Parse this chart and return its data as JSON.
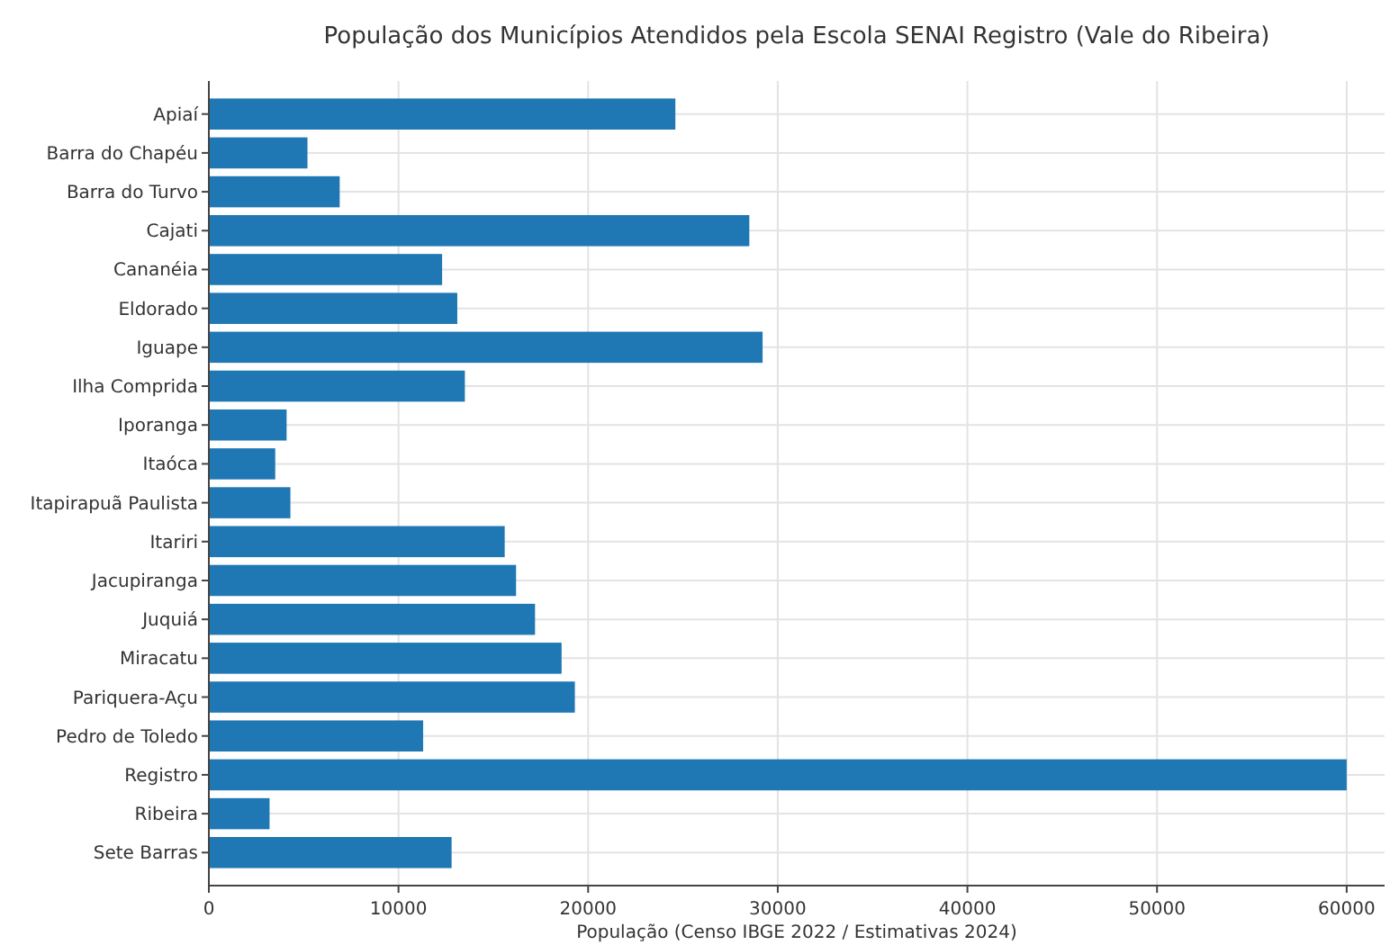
{
  "chart_data": {
    "type": "bar",
    "orientation": "horizontal",
    "title": "População dos Municípios Atendidos pela Escola SENAI Registro (Vale do Ribeira)",
    "xlabel": "População (Censo IBGE 2022 / Estimativas 2024)",
    "categories": [
      "Apiaí",
      "Barra do Chapéu",
      "Barra do Turvo",
      "Cajati",
      "Cananéia",
      "Eldorado",
      "Iguape",
      "Ilha Comprida",
      "Iporanga",
      "Itaóca",
      "Itapirapuã Paulista",
      "Itariri",
      "Jacupiranga",
      "Juquiá",
      "Miracatu",
      "Pariquera-Açu",
      "Pedro de Toledo",
      "Registro",
      "Ribeira",
      "Sete Barras"
    ],
    "values": [
      24600,
      5200,
      6900,
      28500,
      12300,
      13100,
      29200,
      13500,
      4100,
      3500,
      4300,
      15600,
      16200,
      17200,
      18600,
      19300,
      11300,
      60000,
      3200,
      12800
    ],
    "color": "#1f77b4",
    "xlim": [
      0,
      62000
    ],
    "xticks": [
      0,
      10000,
      20000,
      30000,
      40000,
      50000,
      60000
    ],
    "grid": true
  }
}
